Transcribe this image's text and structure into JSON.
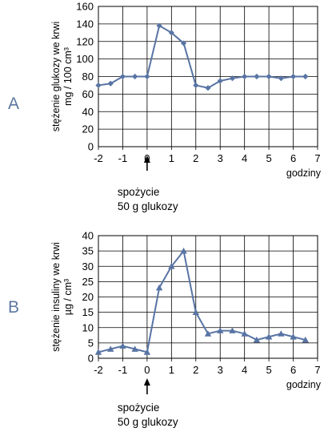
{
  "chart_data": [
    {
      "panel_letter": "A",
      "type": "line",
      "ylabel_line1": "stężenie glukozy we krwi",
      "ylabel_line2": "mg / 100 cm³",
      "xlabel": "godziny",
      "xlim": [
        -2,
        7
      ],
      "ylim": [
        0,
        160
      ],
      "x_ticks": [
        "-2",
        "-1",
        "0",
        "1",
        "2",
        "3",
        "4",
        "5",
        "6",
        "7"
      ],
      "y_ticks": [
        "0",
        "20",
        "40",
        "60",
        "80",
        "100",
        "120",
        "140",
        "160"
      ],
      "grid": true,
      "marker": "diamond",
      "color": "#5874a4",
      "series": [
        {
          "x": [
            -2,
            -1.5,
            -1,
            -0.5,
            0,
            0.5,
            1,
            1.5,
            2,
            2.5,
            3,
            3.5,
            4,
            4.5,
            5,
            5.5,
            6,
            6.5
          ],
          "y": [
            70,
            72,
            80,
            80,
            80,
            138,
            130,
            118,
            70,
            67,
            75,
            78,
            80,
            80,
            80,
            78,
            80,
            80
          ]
        }
      ],
      "annotation_line1": "spożycie",
      "annotation_line2": "50 g glukozy",
      "annotation_x": 0
    },
    {
      "panel_letter": "B",
      "type": "line",
      "ylabel_line1": "stężenie insuliny we krwi",
      "ylabel_line2": "µg / cm³",
      "xlabel": "godziny",
      "xlim": [
        -2,
        7
      ],
      "ylim": [
        0,
        40
      ],
      "x_ticks": [
        "-2",
        "-1",
        "0",
        "1",
        "2",
        "3",
        "4",
        "5",
        "6",
        "7"
      ],
      "y_ticks": [
        "0",
        "5",
        "10",
        "15",
        "20",
        "25",
        "30",
        "35",
        "40"
      ],
      "grid": true,
      "marker": "triangle",
      "color": "#5874a4",
      "series": [
        {
          "x": [
            -2,
            -1.5,
            -1,
            -0.5,
            0,
            0.5,
            1,
            1.5,
            2,
            2.5,
            3,
            3.5,
            4,
            4.5,
            5,
            5.5,
            6,
            6.5
          ],
          "y": [
            2,
            3,
            4,
            3,
            2,
            23,
            30,
            35,
            15,
            8,
            9,
            9,
            8,
            6,
            7,
            8,
            7,
            6
          ]
        }
      ],
      "annotation_line1": "spożycie",
      "annotation_line2": "50 g glukozy",
      "annotation_x": 0
    }
  ]
}
